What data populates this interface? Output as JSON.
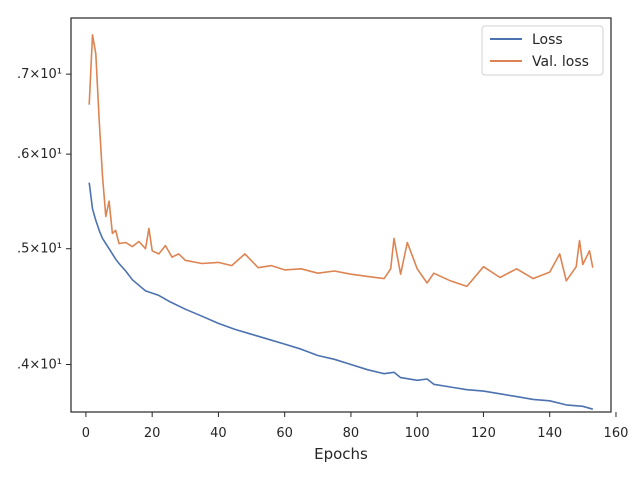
{
  "chart_data": {
    "type": "line",
    "xlabel": "Epochs",
    "ylabel": "",
    "xlim": [
      -4.5,
      158.5
    ],
    "ylim": [
      36.5,
      78.0
    ],
    "yscale": "log",
    "xticks": [
      0,
      20,
      40,
      60,
      80,
      100,
      120,
      140,
      160
    ],
    "xtick_labels": [
      "0",
      "20",
      "40",
      "60",
      "80",
      "100",
      "120",
      "140",
      "160"
    ],
    "yticks": [
      40,
      50,
      60,
      70
    ],
    "ytick_labels": [
      ".4×10¹",
      ".5×10¹",
      ".6×10¹",
      ".7×10¹"
    ],
    "legend_position": "top-right",
    "grid": false,
    "series": [
      {
        "name": "Loss",
        "color": "#4c72b0",
        "x": [
          1,
          2,
          3,
          4,
          5,
          6,
          7,
          8,
          9,
          10,
          12,
          14,
          16,
          18,
          20,
          22,
          25,
          30,
          35,
          40,
          45,
          50,
          55,
          60,
          65,
          70,
          75,
          80,
          85,
          90,
          93,
          95,
          100,
          103,
          105,
          110,
          115,
          120,
          125,
          130,
          135,
          140,
          145,
          150,
          153
        ],
        "y": [
          56.8,
          54.0,
          52.8,
          51.8,
          51.0,
          50.5,
          50.0,
          49.5,
          49.0,
          48.6,
          47.9,
          47.1,
          46.6,
          46.1,
          45.9,
          45.7,
          45.2,
          44.5,
          43.9,
          43.3,
          42.8,
          42.4,
          42.0,
          41.6,
          41.2,
          40.7,
          40.4,
          40.0,
          39.6,
          39.3,
          39.4,
          39.0,
          38.8,
          38.9,
          38.5,
          38.3,
          38.1,
          38.0,
          37.8,
          37.6,
          37.4,
          37.3,
          37.0,
          36.9,
          36.7
        ]
      },
      {
        "name": "Val. loss",
        "color": "#dd8452",
        "x": [
          1,
          2,
          3,
          4,
          5,
          6,
          7,
          8,
          9,
          10,
          12,
          14,
          16,
          18,
          19,
          20,
          22,
          24,
          26,
          28,
          30,
          35,
          40,
          44,
          48,
          52,
          56,
          60,
          65,
          70,
          75,
          80,
          85,
          90,
          92,
          93,
          95,
          97,
          100,
          103,
          105,
          110,
          115,
          120,
          125,
          130,
          135,
          140,
          143,
          145,
          148,
          149,
          150,
          152,
          153
        ],
        "y": [
          66.0,
          75.5,
          72.8,
          64.0,
          57.5,
          53.2,
          54.8,
          51.5,
          51.8,
          50.5,
          50.6,
          50.2,
          50.7,
          50.0,
          52.0,
          49.8,
          49.5,
          50.3,
          49.2,
          49.5,
          48.9,
          48.6,
          48.7,
          48.4,
          49.5,
          48.2,
          48.4,
          48.0,
          48.1,
          47.7,
          47.9,
          47.6,
          47.4,
          47.2,
          48.1,
          51.0,
          47.6,
          50.6,
          48.1,
          46.8,
          47.7,
          47.0,
          46.5,
          48.3,
          47.3,
          48.1,
          47.2,
          47.8,
          49.5,
          47.0,
          48.3,
          50.8,
          48.5,
          49.8,
          48.2
        ]
      }
    ]
  }
}
